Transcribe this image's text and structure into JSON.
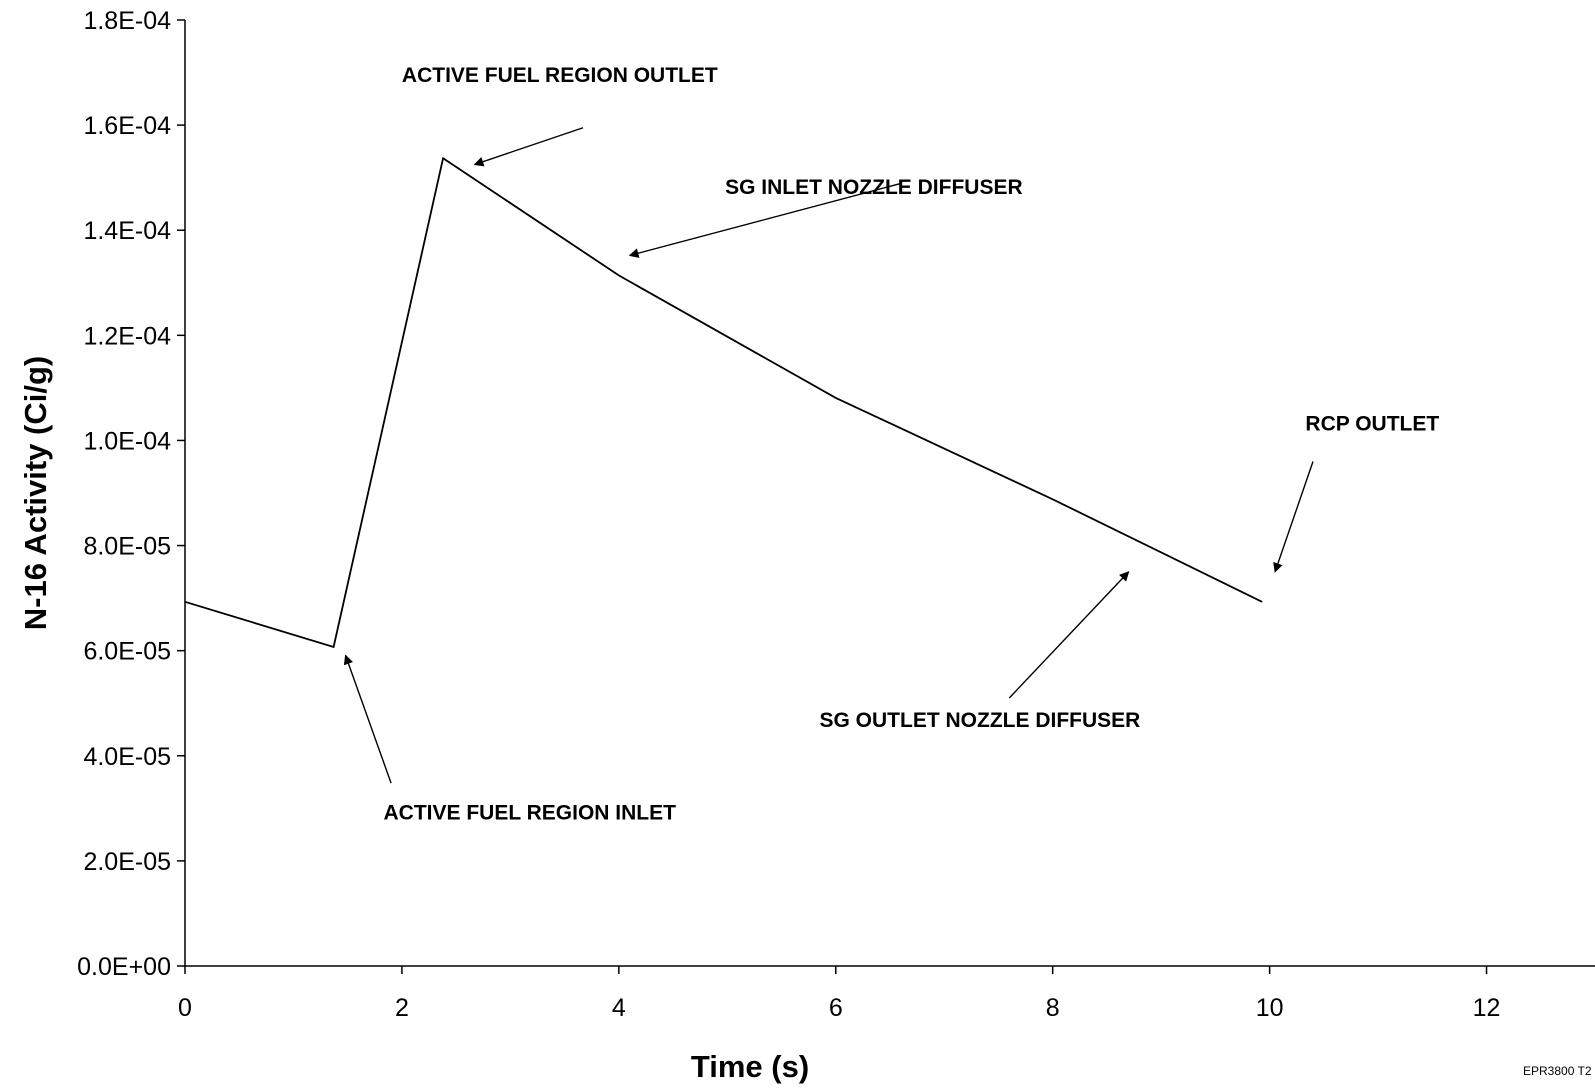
{
  "chart_data": {
    "type": "line",
    "title": "",
    "xlabel": "Time (s)",
    "ylabel": "N-16 Activity (Ci/g)",
    "xlim": [
      0,
      13
    ],
    "ylim": [
      0,
      0.00018
    ],
    "x_ticks": [
      0,
      2,
      4,
      6,
      8,
      10,
      12
    ],
    "x_tick_labels": [
      "0",
      "2",
      "4",
      "6",
      "8",
      "10",
      "12"
    ],
    "y_ticks": [
      0,
      2e-05,
      4e-05,
      6e-05,
      8e-05,
      0.0001,
      0.00012,
      0.00014,
      0.00016,
      0.00018
    ],
    "y_tick_labels": [
      "0.0E+00",
      "2.0E-05",
      "4.0E-05",
      "6.0E-05",
      "8.0E-05",
      "1.0E-04",
      "1.2E-04",
      "1.4E-04",
      "1.6E-04",
      "1.8E-04"
    ],
    "grid": false,
    "legend": "none",
    "series": [
      {
        "color": "#000000",
        "points": [
          [
            0,
            6.93e-05
          ],
          [
            1.37,
            6.07e-05
          ],
          [
            2.38,
            0.0001537
          ],
          [
            4.0,
            0.0001314
          ],
          [
            6.0,
            0.0001081
          ],
          [
            8.0,
            8.88e-05
          ],
          [
            9.93,
            6.93e-05
          ]
        ]
      }
    ],
    "annotations": [
      {
        "text": "ACTIVE FUEL REGION OUTLET",
        "text_x": 2.0,
        "text_y": 0.0001682,
        "arrow_from": [
          3.67,
          0.0001595
        ],
        "arrow_to": [
          2.67,
          0.0001525
        ]
      },
      {
        "text": "SG INLET NOZZLE DIFFUSER",
        "text_x": 4.98,
        "text_y": 0.0001469,
        "arrow_from": [
          6.6,
          0.0001489
        ],
        "arrow_to": [
          4.1,
          0.0001352
        ]
      },
      {
        "text": "RCP OUTLET",
        "text_x": 10.33,
        "text_y": 0.0001019,
        "arrow_from": [
          10.4,
          9.6e-05
        ],
        "arrow_to": [
          10.05,
          7.5e-05
        ]
      },
      {
        "text": "SG OUTLET NOZZLE DIFFUSER",
        "text_x": 5.85,
        "text_y": 4.55e-05,
        "arrow_from": [
          7.6,
          5.1e-05
        ],
        "arrow_to": [
          8.7,
          7.5e-05
        ]
      },
      {
        "text": "ACTIVE FUEL REGION INLET",
        "text_x": 1.83,
        "text_y": 2.79e-05,
        "arrow_from": [
          1.9,
          3.48e-05
        ],
        "arrow_to": [
          1.48,
          5.91e-05
        ]
      }
    ],
    "footnote": "EPR3800 T2"
  }
}
